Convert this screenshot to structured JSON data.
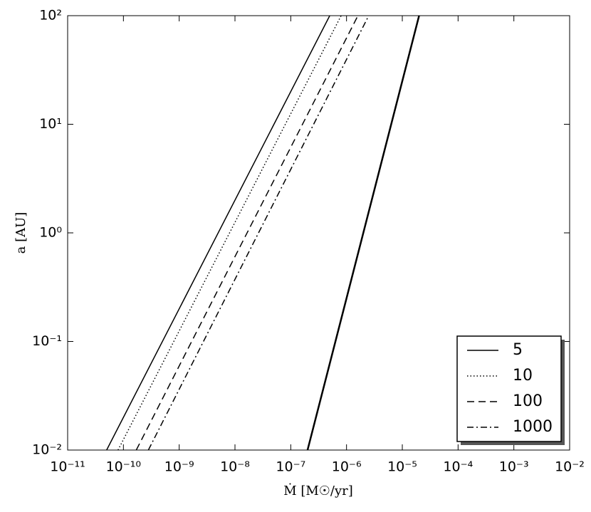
{
  "chart_data": {
    "type": "line",
    "xlabel": "Ṁ    [M☉/yr]",
    "ylabel": "a    [AU]",
    "xscale": "log",
    "yscale": "log",
    "xlim": [
      1e-11,
      0.01
    ],
    "ylim": [
      0.01,
      100
    ],
    "xticks": [
      {
        "value": 1e-11,
        "label": "10⁻¹¹"
      },
      {
        "value": 1e-10,
        "label": "10⁻¹⁰"
      },
      {
        "value": 1e-09,
        "label": "10⁻⁹"
      },
      {
        "value": 1e-08,
        "label": "10⁻⁸"
      },
      {
        "value": 1e-07,
        "label": "10⁻⁷"
      },
      {
        "value": 1e-06,
        "label": "10⁻⁶"
      },
      {
        "value": 1e-05,
        "label": "10⁻⁵"
      },
      {
        "value": 0.0001,
        "label": "10⁻⁴"
      },
      {
        "value": 0.001,
        "label": "10⁻³"
      },
      {
        "value": 0.01,
        "label": "10⁻²"
      }
    ],
    "yticks": [
      {
        "value": 0.01,
        "label": "10⁻²"
      },
      {
        "value": 0.1,
        "label": "10⁻¹"
      },
      {
        "value": 1,
        "label": "10⁰"
      },
      {
        "value": 10,
        "label": "10¹"
      },
      {
        "value": 100,
        "label": "10²"
      }
    ],
    "legend": "lower right",
    "series": [
      {
        "name": "5",
        "color": "#000000",
        "linestyle": "solid",
        "linewidth": 1.5,
        "x": [
          5e-11,
          5e-07
        ],
        "values": [
          0.01,
          100
        ]
      },
      {
        "name": "10",
        "color": "#000000",
        "linestyle": "dotted",
        "linewidth": 1.5,
        "x": [
          8e-11,
          8e-07
        ],
        "values": [
          0.01,
          100
        ]
      },
      {
        "name": "100",
        "color": "#000000",
        "linestyle": "dashed",
        "linewidth": 1.5,
        "x": [
          1.7e-10,
          1.6e-06
        ],
        "values": [
          0.01,
          100
        ]
      },
      {
        "name": "1000",
        "color": "#000000",
        "linestyle": "dashdot",
        "linewidth": 1.5,
        "x": [
          2.8e-10,
          2.5e-06
        ],
        "values": [
          0.01,
          100
        ]
      },
      {
        "color": "#000000",
        "linestyle": "solid",
        "linewidth": 2.5,
        "x": [
          2e-07,
          2e-05
        ],
        "values": [
          0.01,
          100
        ]
      }
    ]
  }
}
